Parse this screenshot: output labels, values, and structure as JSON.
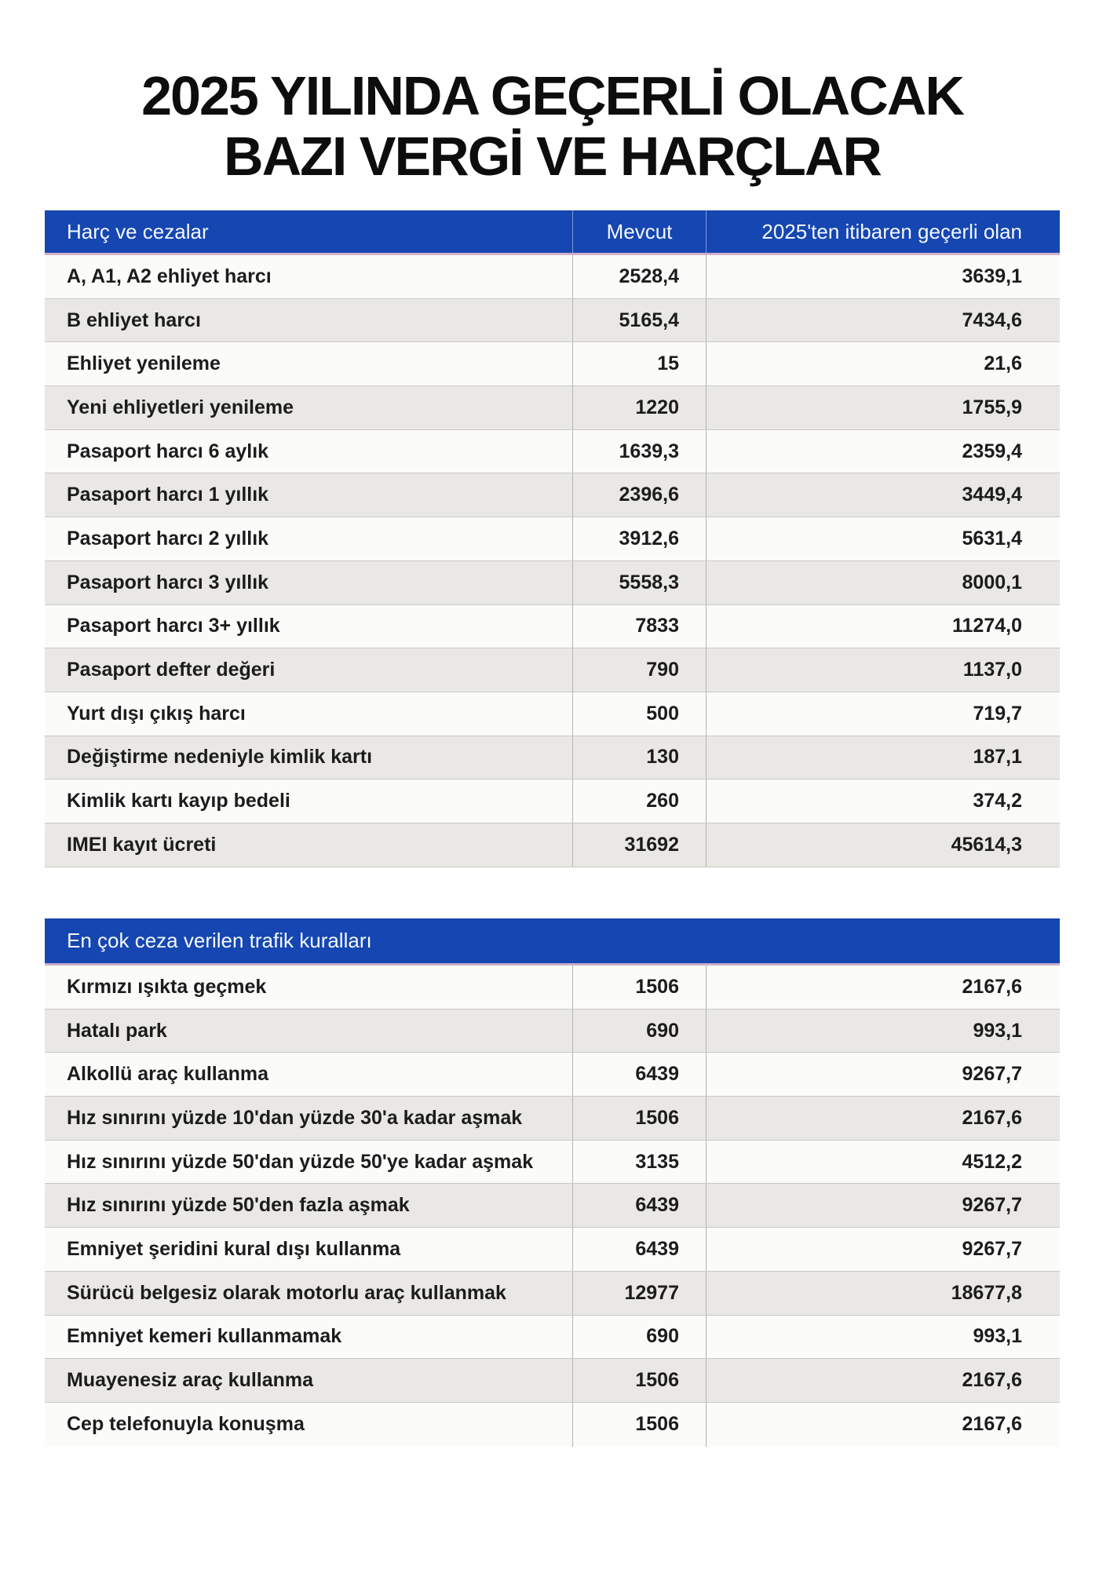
{
  "title": {
    "line1": "2025 YILINDA GEÇERLİ OLACAK",
    "line2": "BAZI VERGİ VE HARÇLAR"
  },
  "colors": {
    "header_blue": "#1546b1",
    "header_underline_pink": "#cfaecb",
    "row_white": "#fbfbf9",
    "row_gray": "#e9e8e5",
    "text_dark": "#1c1c1c"
  },
  "table1": {
    "headers": {
      "col1": "Harç ve cezalar",
      "col2": "Mevcut",
      "col3": "2025'ten itibaren geçerli olan"
    },
    "rows": [
      {
        "label": "A, A1, A2 ehliyet harcı",
        "current": "2528,4",
        "new": "3639,1"
      },
      {
        "label": "B ehliyet harcı",
        "current": "5165,4",
        "new": "7434,6"
      },
      {
        "label": "Ehliyet yenileme",
        "current": "15",
        "new": "21,6"
      },
      {
        "label": "Yeni ehliyetleri yenileme",
        "current": "1220",
        "new": "1755,9"
      },
      {
        "label": "Pasaport harcı 6 aylık",
        "current": "1639,3",
        "new": "2359,4"
      },
      {
        "label": "Pasaport harcı 1 yıllık",
        "current": "2396,6",
        "new": "3449,4"
      },
      {
        "label": "Pasaport harcı 2 yıllık",
        "current": "3912,6",
        "new": "5631,4"
      },
      {
        "label": "Pasaport harcı 3 yıllık",
        "current": "5558,3",
        "new": "8000,1"
      },
      {
        "label": "Pasaport harcı 3+ yıllık",
        "current": "7833",
        "new": "11274,0"
      },
      {
        "label": "Pasaport defter değeri",
        "current": "790",
        "new": "1137,0"
      },
      {
        "label": "Yurt dışı çıkış harcı",
        "current": "500",
        "new": "719,7"
      },
      {
        "label": "Değiştirme nedeniyle kimlik kartı",
        "current": "130",
        "new": "187,1"
      },
      {
        "label": "Kimlik kartı kayıp bedeli",
        "current": "260",
        "new": "374,2"
      },
      {
        "label": "IMEI kayıt ücreti",
        "current": "31692",
        "new": "45614,3"
      }
    ]
  },
  "table2": {
    "header": "En çok ceza verilen trafik kuralları",
    "rows": [
      {
        "label": "Kırmızı ışıkta geçmek",
        "current": "1506",
        "new": "2167,6"
      },
      {
        "label": "Hatalı park",
        "current": "690",
        "new": "993,1"
      },
      {
        "label": "Alkollü araç kullanma",
        "current": "6439",
        "new": "9267,7"
      },
      {
        "label": "Hız sınırını yüzde 10'dan yüzde 30'a kadar aşmak",
        "current": "1506",
        "new": "2167,6"
      },
      {
        "label": "Hız sınırını yüzde 50'dan yüzde 50'ye kadar aşmak",
        "current": "3135",
        "new": "4512,2"
      },
      {
        "label": "Hız sınırını yüzde 50'den fazla aşmak",
        "current": "6439",
        "new": "9267,7"
      },
      {
        "label": "Emniyet şeridini kural dışı kullanma",
        "current": "6439",
        "new": "9267,7"
      },
      {
        "label": "Sürücü belgesiz olarak motorlu araç kullanmak",
        "current": "12977",
        "new": "18677,8"
      },
      {
        "label": "Emniyet kemeri kullanmamak",
        "current": "690",
        "new": "993,1"
      },
      {
        "label": "Muayenesiz araç kullanma",
        "current": "1506",
        "new": "2167,6"
      },
      {
        "label": "Cep telefonuyla konuşma",
        "current": "1506",
        "new": "2167,6"
      }
    ]
  }
}
